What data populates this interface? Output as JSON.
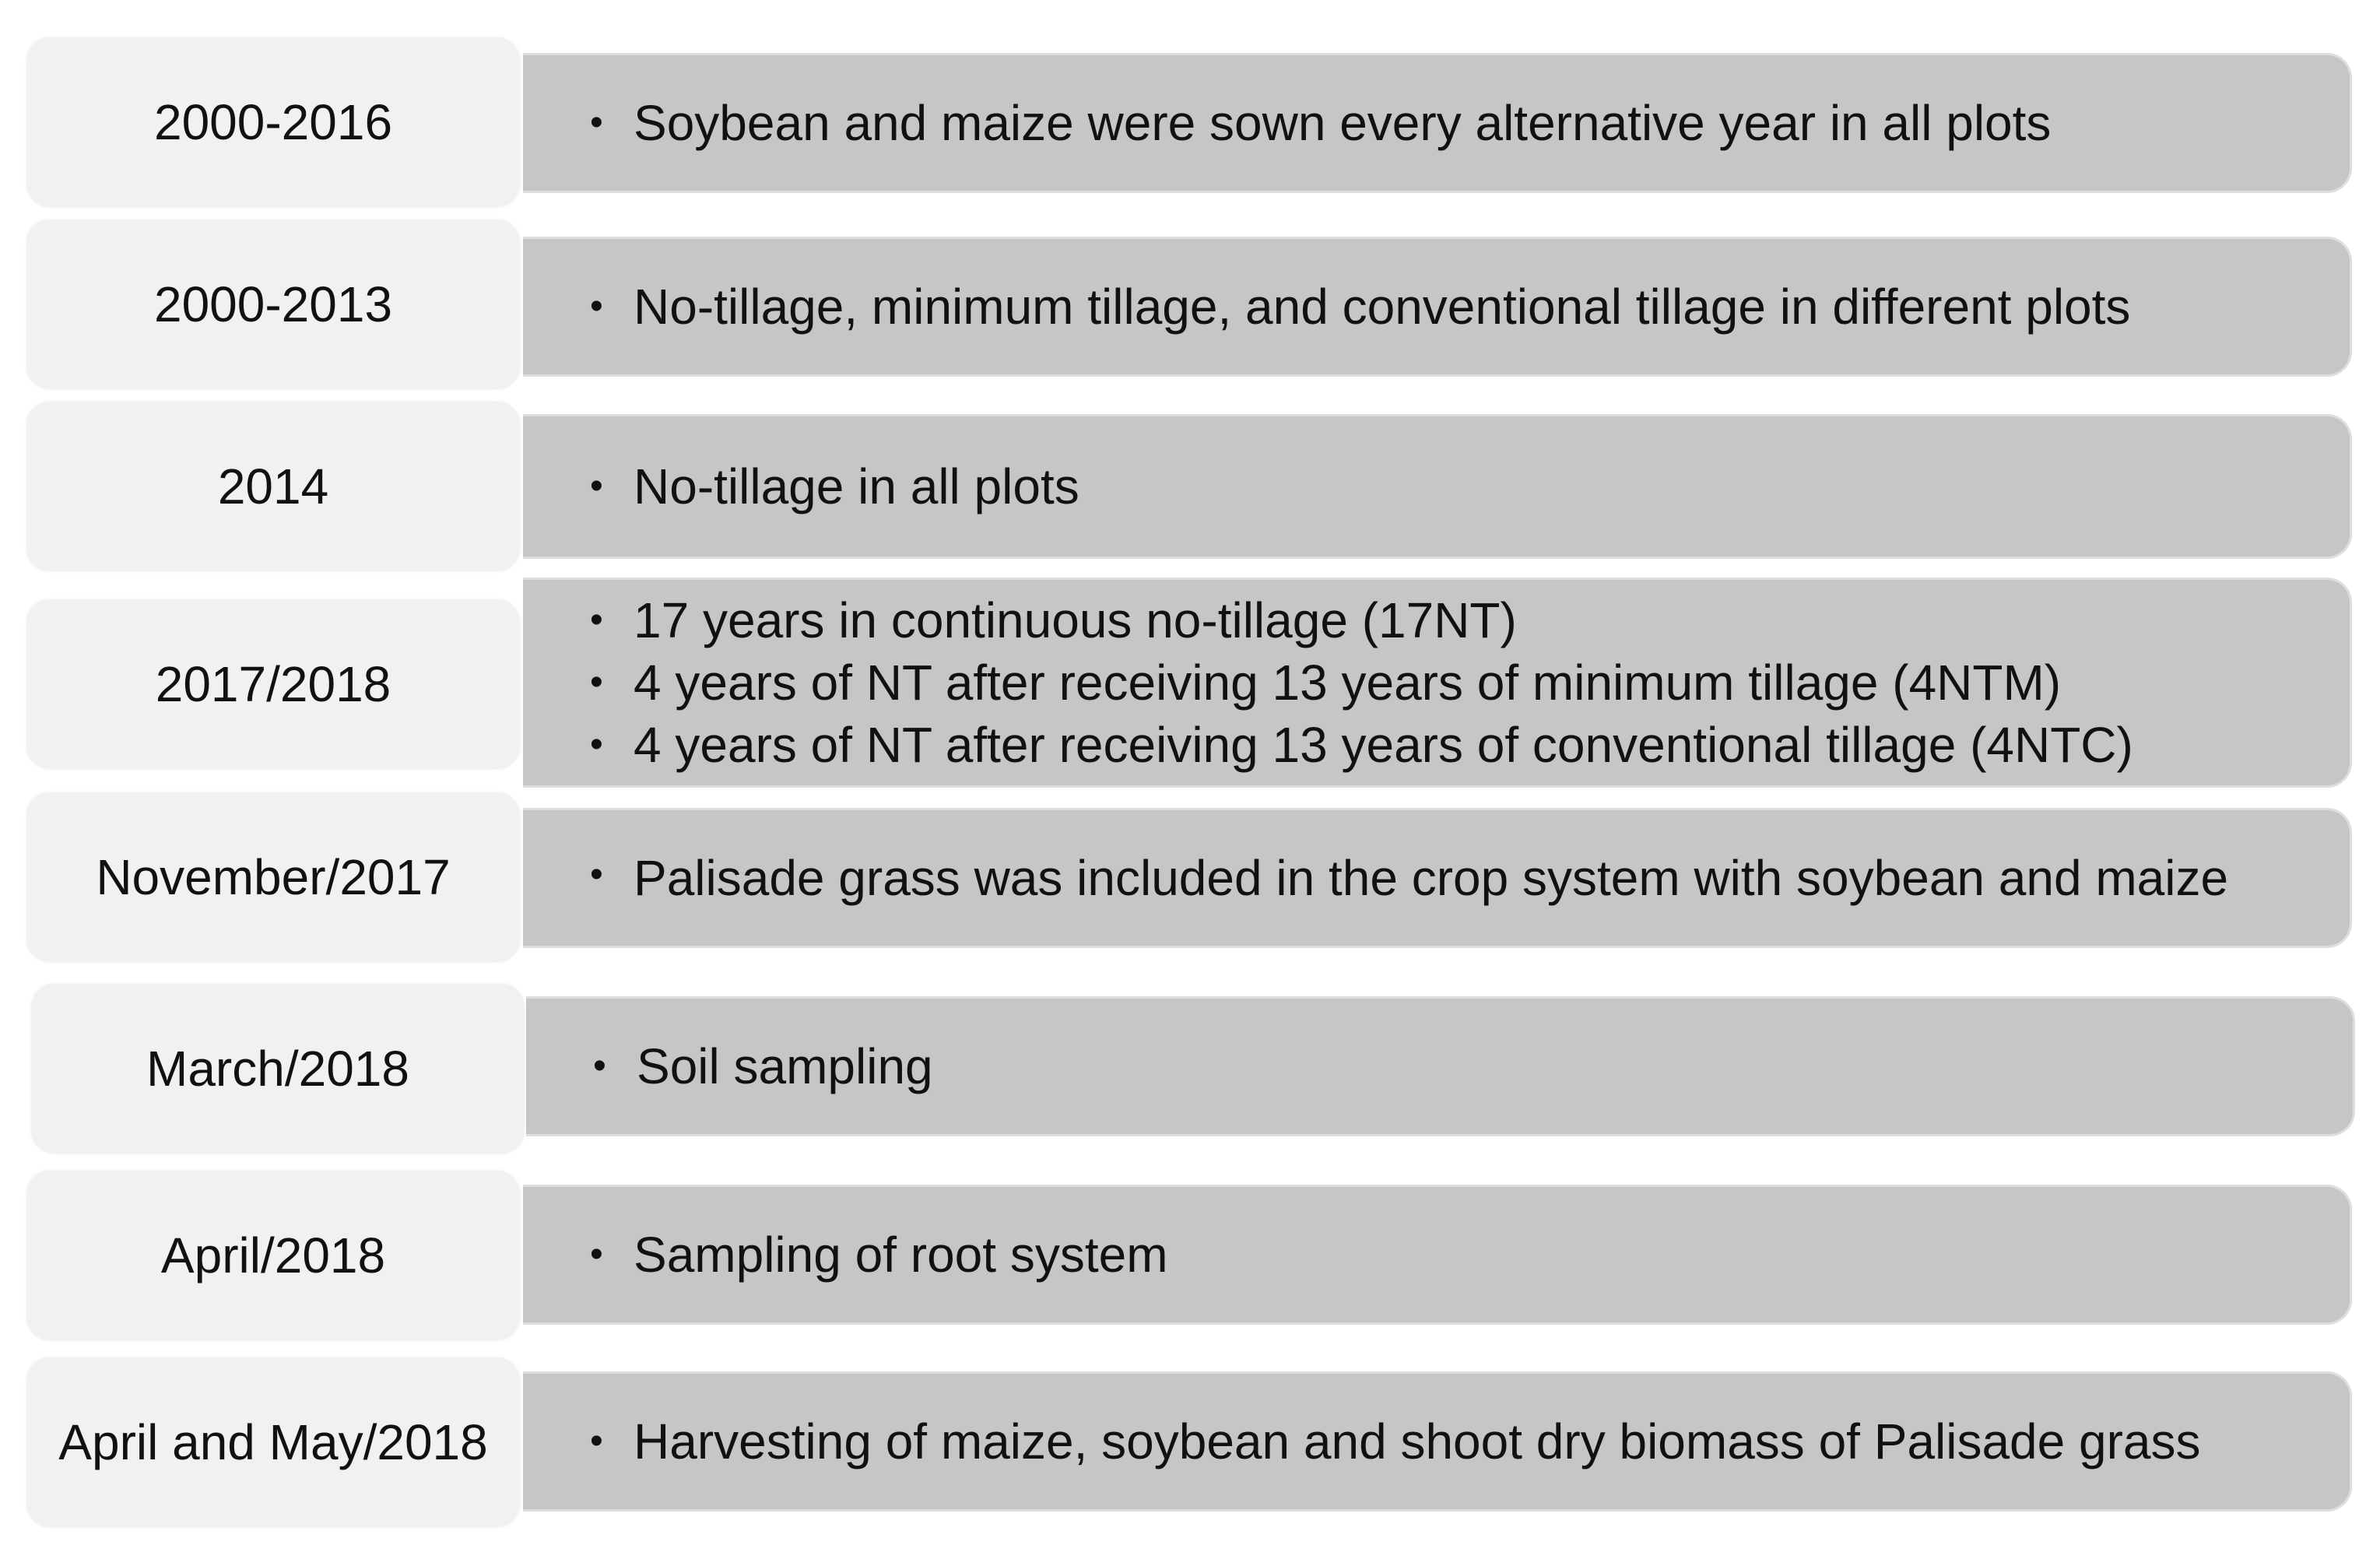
{
  "rows": [
    {
      "date": "2000-2016",
      "items": [
        "Soybean and maize were sown every alternative year in all plots"
      ]
    },
    {
      "date": "2000-2013",
      "items": [
        "No-tillage, minimum tillage, and conventional tillage in different plots"
      ]
    },
    {
      "date": "2014",
      "items": [
        "No-tillage in all plots"
      ]
    },
    {
      "date": "2017/2018",
      "items": [
        "17 years in continuous no-tillage (17NT)",
        "4 years of NT after receiving 13 years of minimum tillage (4NTM)",
        "4 years of NT after receiving 13 years of conventional tillage (4NTC)"
      ]
    },
    {
      "date": "November/2017",
      "items": [
        "Palisade grass was included in the crop system with soybean and maize"
      ]
    },
    {
      "date": "March/2018",
      "items": [
        "Soil sampling"
      ]
    },
    {
      "date": "April/2018",
      "items": [
        "Sampling of root system"
      ]
    },
    {
      "date": "April and May/2018",
      "items": [
        "Harvesting of maize, soybean and shoot dry biomass of Palisade grass"
      ]
    }
  ],
  "bullet_symbol": "•",
  "colors": {
    "date_box": "#f1f1f1",
    "description_box": "#c6c6c6",
    "text": "#111111"
  }
}
